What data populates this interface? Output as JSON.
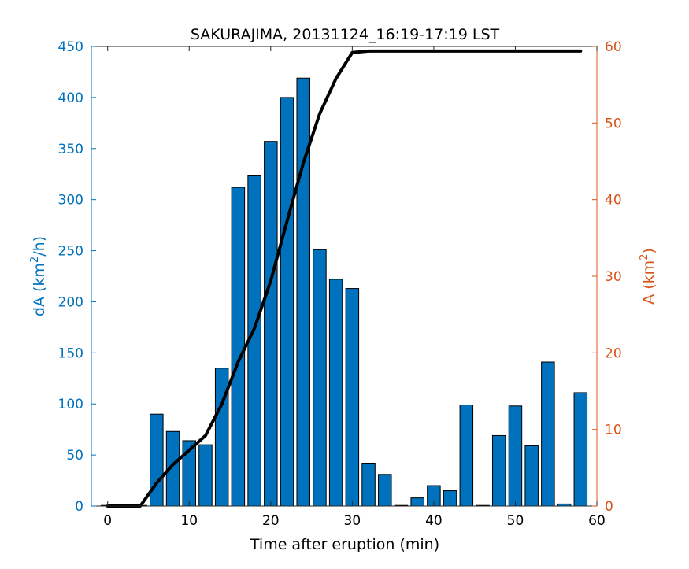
{
  "chart_data": {
    "type": "bar",
    "title": "SAKURAJIMA, 20131124_16:19-17:19 LST",
    "xlabel": "Time after eruption (min)",
    "ylabel_left": {
      "main": "dA (km",
      "sup": "2",
      "tail": "/h)"
    },
    "ylabel_right": {
      "main": "A (km",
      "sup": "2",
      "tail": ")"
    },
    "xlim": [
      -2,
      60
    ],
    "ylim_left": [
      0,
      450
    ],
    "ylim_right": [
      0,
      60
    ],
    "xticks": [
      0,
      10,
      20,
      30,
      40,
      50,
      60
    ],
    "yticks_left": [
      0,
      50,
      100,
      150,
      200,
      250,
      300,
      350,
      400,
      450
    ],
    "yticks_right": [
      0,
      10,
      20,
      30,
      40,
      50,
      60
    ],
    "grid": false,
    "colors": {
      "bars": "#0072BD",
      "bar_edge": "#000000",
      "right_axis": "#D95319",
      "line": "#000000"
    },
    "bars": {
      "name": "dA",
      "x": [
        0,
        2,
        4,
        6,
        8,
        10,
        12,
        14,
        16,
        18,
        20,
        22,
        24,
        26,
        28,
        30,
        32,
        34,
        36,
        38,
        40,
        42,
        44,
        46,
        48,
        50,
        52,
        54,
        56,
        58
      ],
      "values": [
        0,
        0,
        0,
        90,
        73,
        64,
        60,
        135,
        312,
        324,
        357,
        400,
        419,
        251,
        222,
        213,
        42,
        31,
        0.5,
        8,
        20,
        15,
        99,
        0,
        69,
        98,
        59,
        141,
        2,
        111
      ]
    },
    "line": {
      "name": "A",
      "axis": "right",
      "x": [
        0,
        2,
        4,
        6,
        8,
        10,
        12,
        14,
        16,
        18,
        20,
        22,
        24,
        26,
        28,
        30,
        32,
        34,
        36,
        38,
        40,
        42,
        44,
        46,
        48,
        50,
        52,
        54,
        56,
        58
      ],
      "values": [
        0,
        0,
        0,
        3,
        5.4,
        7.3,
        9.2,
        13.3,
        18.8,
        23.2,
        29.4,
        37.2,
        44.8,
        51.2,
        55.8,
        59.2,
        59.4,
        59.4,
        59.4,
        59.4,
        59.4,
        59.4,
        59.4,
        59.4,
        59.4,
        59.4,
        59.4,
        59.4,
        59.4,
        59.4
      ]
    }
  }
}
